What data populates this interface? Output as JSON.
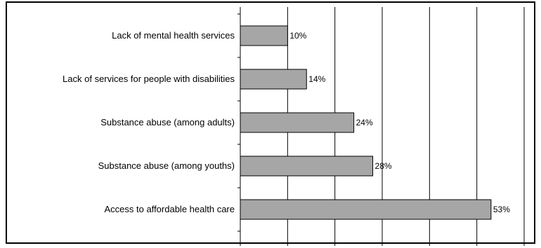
{
  "chart_data": {
    "type": "bar",
    "orientation": "horizontal",
    "categories": [
      "Lack of mental health services",
      "Lack of services for people with disabilities",
      "Substance abuse (among adults)",
      "Substance abuse (among youths)",
      "Access to affordable health care"
    ],
    "values": [
      10,
      14,
      24,
      28,
      53
    ],
    "data_labels": [
      "10%",
      "14%",
      "24%",
      "28%",
      "53%"
    ],
    "xlim": [
      0,
      60
    ],
    "xticks": [
      0,
      10,
      20,
      30,
      40,
      50,
      60
    ],
    "grid": true,
    "legend": "none",
    "colors": {
      "bar": "#a6a6a6",
      "bar_stroke": "#000000",
      "grid": "#000000"
    }
  }
}
